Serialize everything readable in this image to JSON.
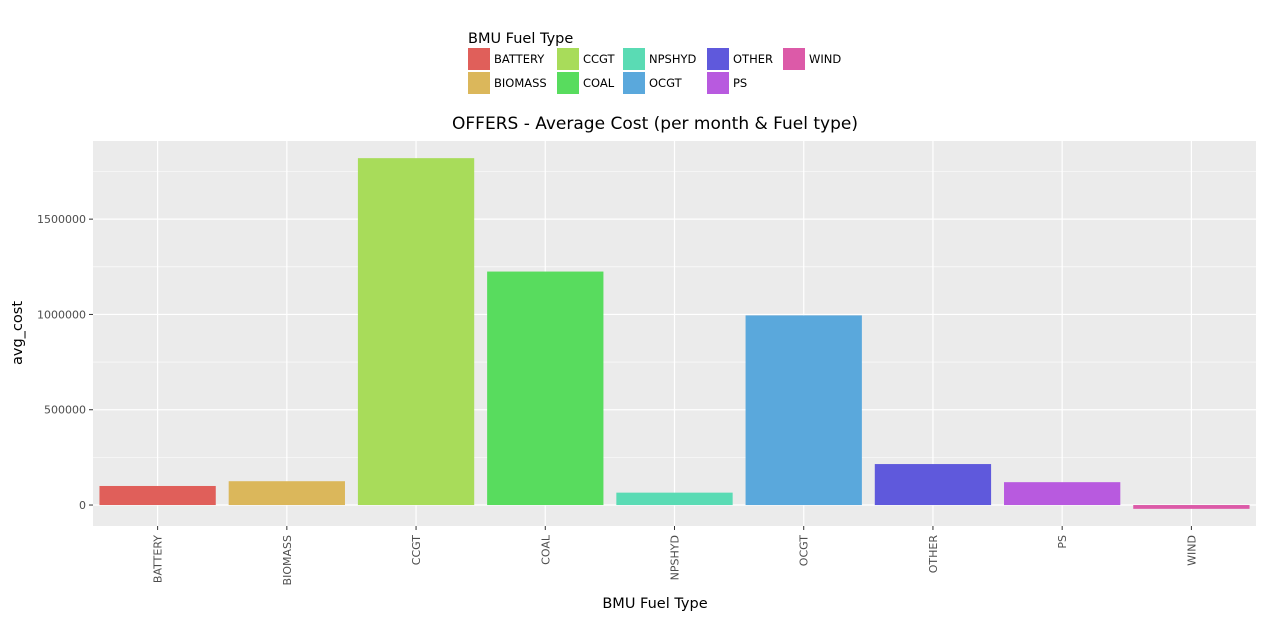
{
  "chart_data": {
    "type": "bar",
    "title": "OFFERS - Average Cost (per month & Fuel type)",
    "xlabel": "BMU Fuel Type",
    "ylabel": "avg_cost",
    "categories": [
      "BATTERY",
      "BIOMASS",
      "CCGT",
      "COAL",
      "NPSHYD",
      "OCGT",
      "OTHER",
      "PS",
      "WIND"
    ],
    "values": [
      100000,
      125000,
      1820000,
      1225000,
      65000,
      995000,
      215000,
      120000,
      -20000
    ],
    "colors": [
      "#e05f5a",
      "#dbb75b",
      "#a8dc5a",
      "#58dc5e",
      "#5adbb4",
      "#5aa8dc",
      "#5f59dc",
      "#b85adf",
      "#dc5aa8"
    ],
    "yticks": [
      0,
      500000,
      1000000,
      1500000
    ],
    "ylim": [
      -110000,
      1910000
    ],
    "grid": true,
    "legend": {
      "title": "BMU Fuel Type",
      "placement": "top",
      "entries": [
        "BATTERY",
        "BIOMASS",
        "CCGT",
        "COAL",
        "NPSHYD",
        "OCGT",
        "OTHER",
        "PS",
        "WIND"
      ]
    },
    "panel_background": "#ebebeb",
    "grid_color": "#ffffff"
  }
}
